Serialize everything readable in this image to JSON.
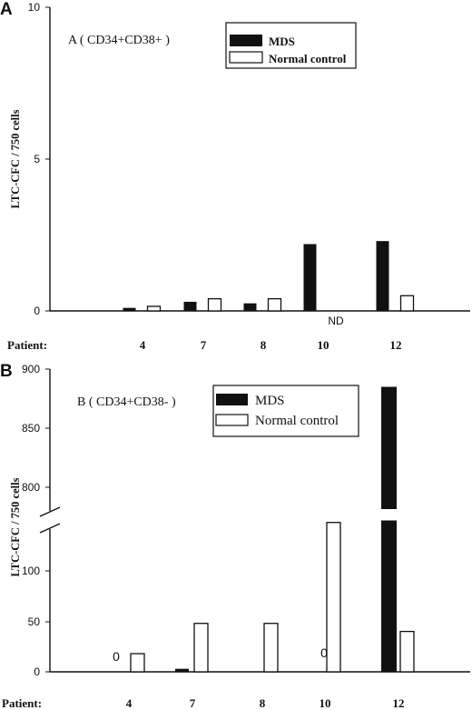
{
  "chart_data": [
    {
      "type": "bar",
      "panel": "A",
      "title": "A ( CD34+CD38+ )",
      "ylabel": "LTC-CFC / 750 cells",
      "xlabel": "Patient:",
      "categories": [
        "4",
        "7",
        "8",
        "10",
        "12"
      ],
      "ylim": [
        0,
        10
      ],
      "yticks": [
        "0",
        "5",
        "10"
      ],
      "series": [
        {
          "name": "MDS",
          "values": [
            0.1,
            0.3,
            0.25,
            2.2,
            2.3
          ],
          "color": "#111111"
        },
        {
          "name": "Normal control",
          "values": [
            0.15,
            0.4,
            0.4,
            null,
            0.5
          ],
          "color": "#ffffff"
        }
      ],
      "annotations": [
        {
          "category": "10",
          "series": "Normal control",
          "text": "ND"
        }
      ],
      "legend": "top-right",
      "grid": false
    },
    {
      "type": "bar",
      "panel": "B",
      "title": "B ( CD34+CD38- )",
      "ylabel": "LTC-CFC / 750 cells",
      "xlabel": "Patient:",
      "categories": [
        "4",
        "7",
        "8",
        "10",
        "12"
      ],
      "ylim": [
        0,
        900
      ],
      "axis_break": [
        150,
        760
      ],
      "yticks": [
        "0",
        "50",
        "100",
        "800",
        "850",
        "900"
      ],
      "series": [
        {
          "name": "MDS",
          "values": [
            0,
            3,
            0,
            0,
            885
          ],
          "color": "#111111"
        },
        {
          "name": "Normal control",
          "values": [
            18,
            48,
            48,
            148,
            40
          ],
          "color": "#ffffff"
        }
      ],
      "annotations": [
        {
          "category": "4",
          "series": "MDS",
          "text": "0"
        },
        {
          "category": "10",
          "series": "MDS",
          "text": "0"
        }
      ],
      "legend": "top-right",
      "grid": false
    }
  ]
}
